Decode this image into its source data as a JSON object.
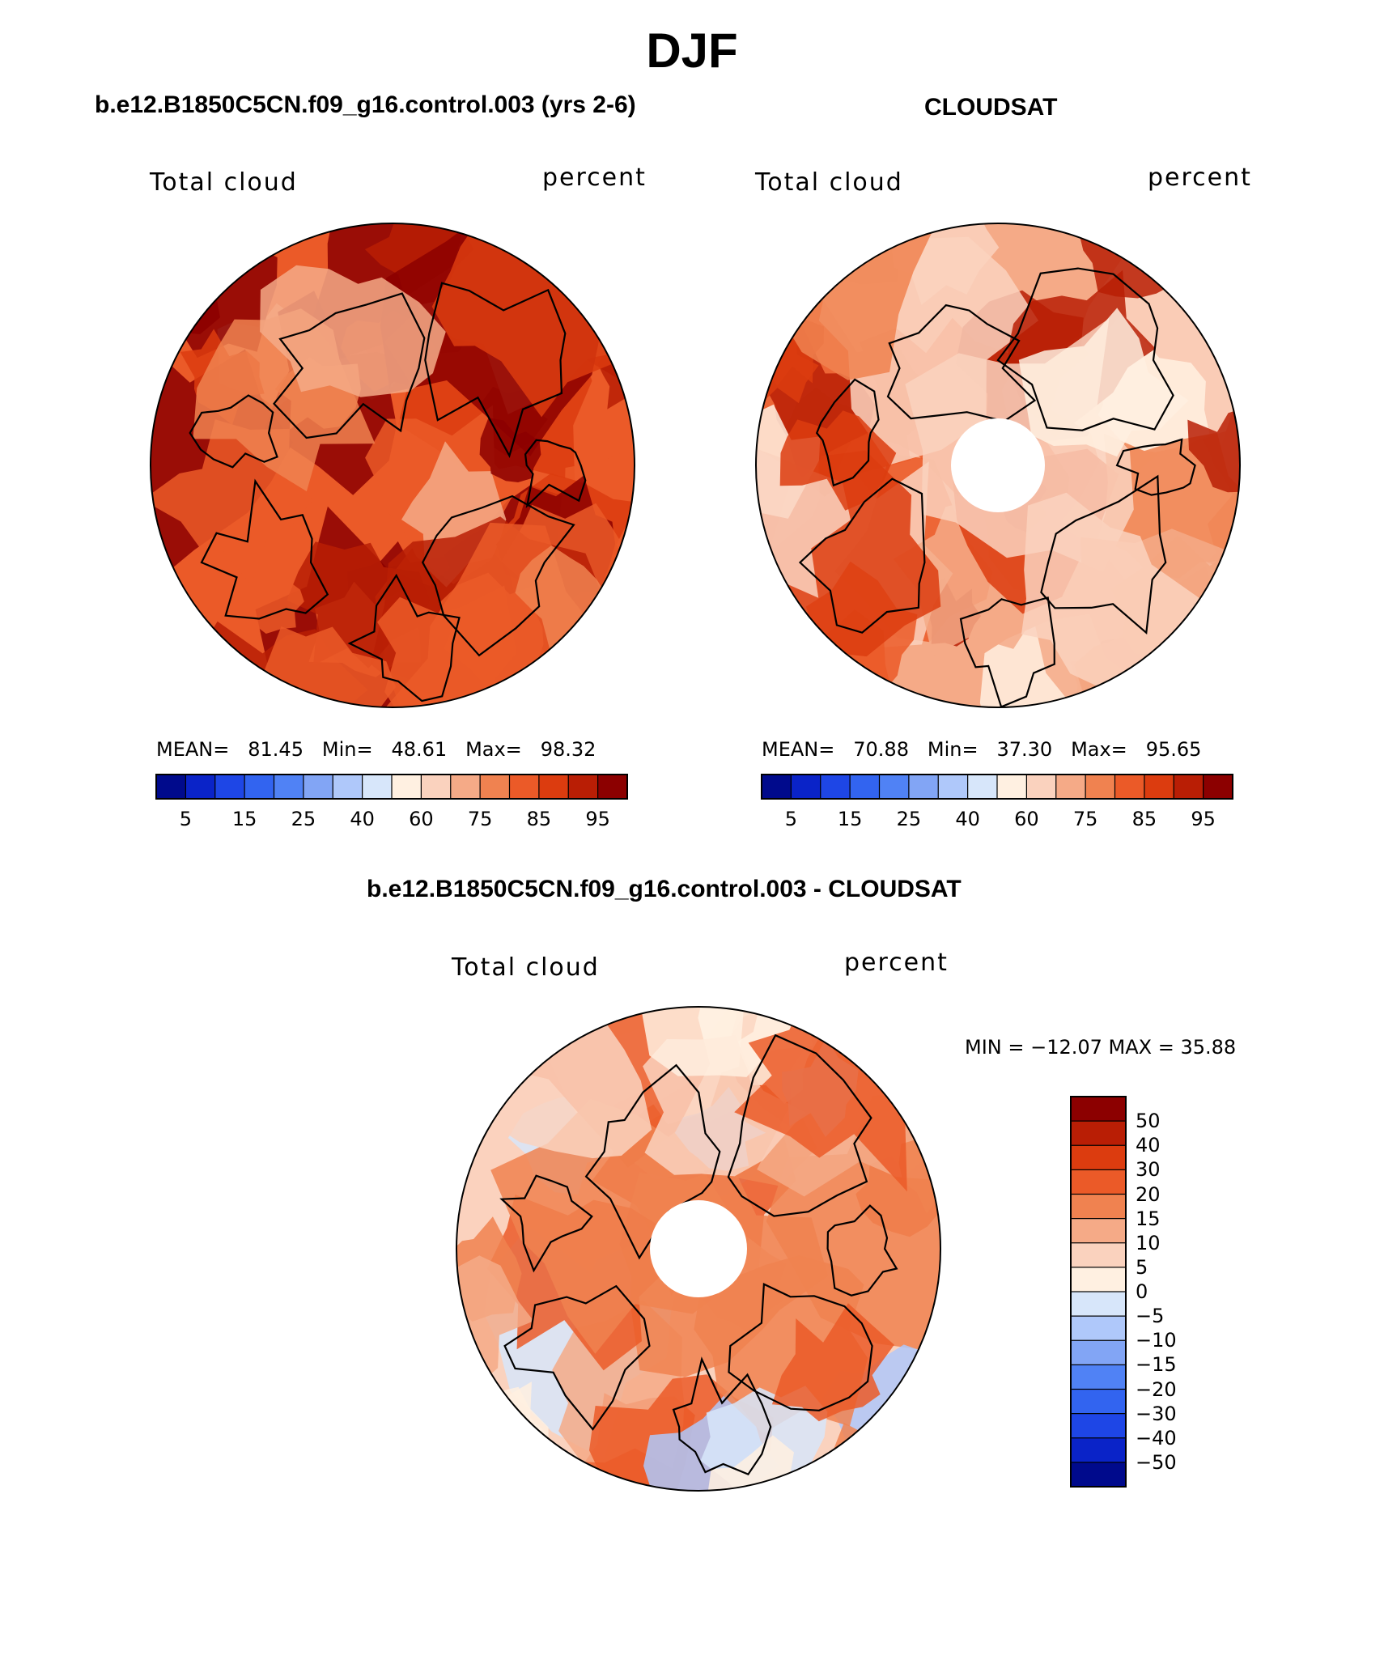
{
  "title": "DJF",
  "colors": {
    "abs_scale": [
      "#000a8c",
      "#0a23c8",
      "#1e46e6",
      "#3264f0",
      "#5082f5",
      "#82a5f5",
      "#afc8fa",
      "#d7e6fa",
      "#fff0e1",
      "#fad2be",
      "#f5aa87",
      "#f08250",
      "#eb5a28",
      "#dc3c0f",
      "#b91e05",
      "#8c0000"
    ],
    "diff_scale": [
      "#000a8c",
      "#0a23c8",
      "#1e46e6",
      "#3264f0",
      "#5082f5",
      "#82a5f5",
      "#afc8fa",
      "#d7e6fa",
      "#fff0e1",
      "#fad2be",
      "#f5aa87",
      "#f08250",
      "#eb5a28",
      "#dc3c0f",
      "#b91e05",
      "#8c0000"
    ]
  },
  "panels": {
    "model": {
      "title": "b.e12.B1850C5CN.f09_g16.control.003 (yrs 2-6)",
      "variable": "Total cloud",
      "units": "percent",
      "mean_label": "MEAN=",
      "mean": "81.45",
      "min_label": "Min=",
      "min": "48.61",
      "max_label": "Max=",
      "max": "98.32",
      "ticks": [
        "5",
        "15",
        "25",
        "40",
        "60",
        "75",
        "85",
        "95"
      ]
    },
    "obs": {
      "title": "CLOUDSAT",
      "variable": "Total cloud",
      "units": "percent",
      "mean_label": "MEAN=",
      "mean": "70.88",
      "min_label": "Min=",
      "min": "37.30",
      "max_label": "Max=",
      "max": "95.65",
      "ticks": [
        "5",
        "15",
        "25",
        "40",
        "60",
        "75",
        "85",
        "95"
      ]
    },
    "diff": {
      "title": "b.e12.B1850C5CN.f09_g16.control.003 - CLOUDSAT",
      "variable": "Total cloud",
      "units": "percent",
      "minmax": "MIN = −12.07 MAX =  35.88",
      "ticks": [
        "50",
        "40",
        "30",
        "20",
        "15",
        "10",
        "5",
        "0",
        "−5",
        "−10",
        "−15",
        "−20",
        "−30",
        "−40",
        "−50"
      ]
    }
  }
}
